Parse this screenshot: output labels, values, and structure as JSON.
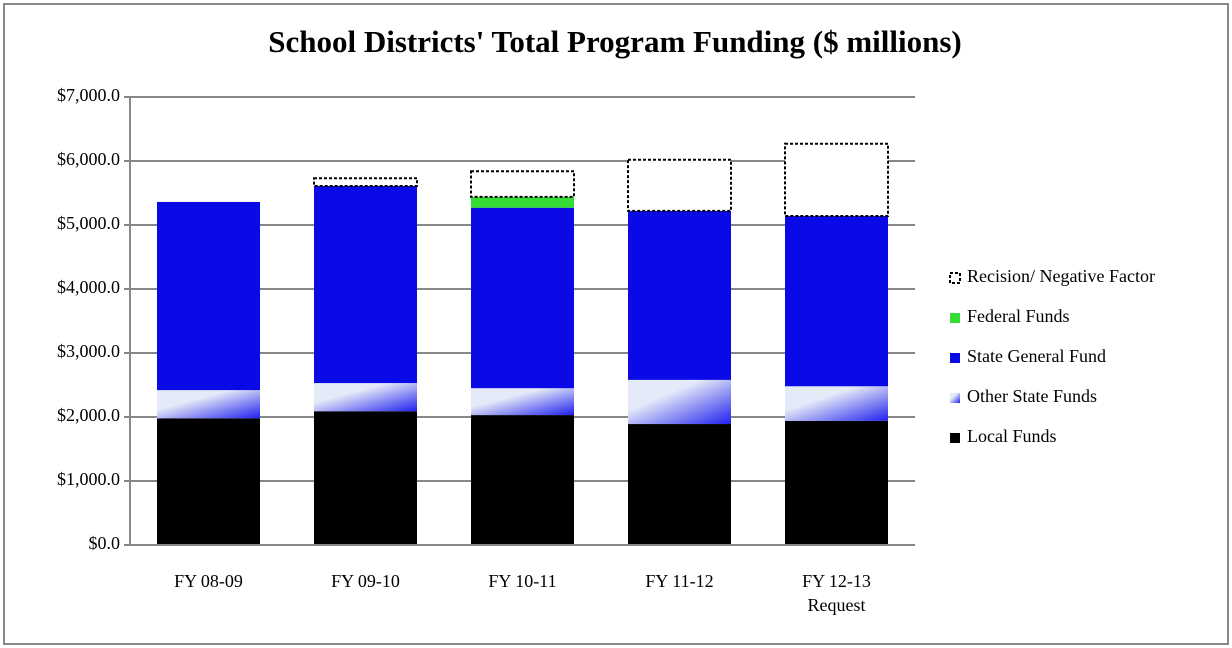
{
  "chart_data": {
    "type": "stacked_bar",
    "title": "School Districts' Total Program Funding ($ millions)",
    "categories": [
      "FY 08-09",
      "FY 09-10",
      "FY 10-11",
      "FY 11-12",
      "FY 12-13 Request"
    ],
    "series": [
      {
        "name": "Local Funds",
        "color": "#000000",
        "values": [
          1980,
          2090,
          2030,
          1890,
          1940
        ]
      },
      {
        "name": "Other State Funds",
        "color": "#dce4f8",
        "values": [
          440,
          440,
          420,
          690,
          540
        ]
      },
      {
        "name": "State General Fund",
        "color": "#0a0ae6",
        "values": [
          2940,
          3080,
          2820,
          2640,
          2660
        ]
      },
      {
        "name": "Federal Funds",
        "color": "#33dd33",
        "values": [
          0,
          0,
          170,
          0,
          0
        ]
      },
      {
        "name": "Recision/ Negative Factor",
        "color": "#ffffff",
        "values": [
          0,
          120,
          400,
          800,
          1130
        ]
      }
    ],
    "ylim": [
      0,
      7000
    ],
    "yticks": [
      {
        "value": 0,
        "label": "$0.0"
      },
      {
        "value": 1000,
        "label": "$1,000.0"
      },
      {
        "value": 2000,
        "label": "$2,000.0"
      },
      {
        "value": 3000,
        "label": "$3,000.0"
      },
      {
        "value": 4000,
        "label": "$4,000.0"
      },
      {
        "value": 5000,
        "label": "$5,000.0"
      },
      {
        "value": 6000,
        "label": "$6,000.0"
      },
      {
        "value": 7000,
        "label": "$7,000.0"
      }
    ],
    "grid": true,
    "legend": "right"
  }
}
